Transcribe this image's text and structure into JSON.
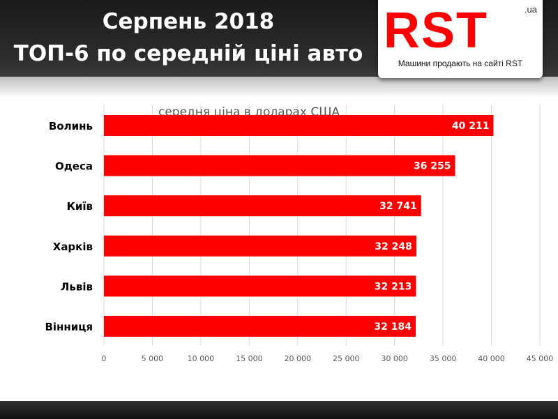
{
  "header": {
    "title_line1": "Серпень 2018",
    "title_line2": "ТОП-6 по середній ціні авто"
  },
  "logo": {
    "text": "RST",
    ".ua": ".ua",
    "domain": ".ua",
    "tagline": "Машини продають на сайті RST"
  },
  "colors": {
    "bar": "#ff0000",
    "grid": "#d9d9d9"
  },
  "chart_data": {
    "type": "bar",
    "orientation": "horizontal",
    "title": "середня ціна в доларах США",
    "categories": [
      "Волинь",
      "Одеса",
      "Київ",
      "Харків",
      "Львів",
      "Вінниця"
    ],
    "values": [
      40211,
      36255,
      32741,
      32248,
      32213,
      32184
    ],
    "value_labels": [
      "40 211",
      "36 255",
      "32 741",
      "32 248",
      "32 213",
      "32 184"
    ],
    "xlim": [
      0,
      45000
    ],
    "xticks": [
      0,
      5000,
      10000,
      15000,
      20000,
      25000,
      30000,
      35000,
      40000,
      45000
    ],
    "xtick_labels": [
      "0",
      "5 000",
      "10 000",
      "15 000",
      "20 000",
      "25 000",
      "30 000",
      "35 000",
      "40 000",
      "45 000"
    ],
    "grid": true
  }
}
